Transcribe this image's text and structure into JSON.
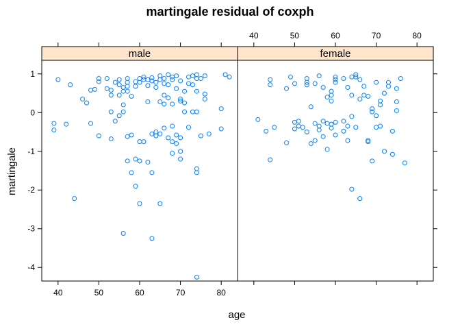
{
  "chart_data": {
    "type": "scatter",
    "title": "martingale residual of coxph",
    "xlabel": "age",
    "ylabel": "martingale",
    "xlim": [
      36,
      84
    ],
    "ylim": [
      -4.35,
      1.35
    ],
    "x_ticks": [
      40,
      50,
      60,
      70,
      80
    ],
    "y_ticks": [
      -4,
      -3,
      -2,
      -1,
      0,
      1
    ],
    "point_color": "#0080ff",
    "strip_color": "#ffe5cc",
    "panels": [
      {
        "name": "male",
        "points": [
          [
            39,
            -0.28
          ],
          [
            39,
            -0.45
          ],
          [
            40,
            0.85
          ],
          [
            42,
            -0.3
          ],
          [
            43,
            0.72
          ],
          [
            44,
            -2.22
          ],
          [
            46,
            0.35
          ],
          [
            47,
            0.25
          ],
          [
            48,
            0.58
          ],
          [
            48,
            -0.28
          ],
          [
            49,
            0.6
          ],
          [
            50,
            0.88
          ],
          [
            50,
            0.8
          ],
          [
            50,
            -0.6
          ],
          [
            52,
            0.88
          ],
          [
            52,
            0.62
          ],
          [
            53,
            0.58
          ],
          [
            53,
            0.45
          ],
          [
            53,
            0.02
          ],
          [
            53,
            -0.68
          ],
          [
            54,
            0.78
          ],
          [
            54,
            -0.22
          ],
          [
            55,
            0.85
          ],
          [
            55,
            0.72
          ],
          [
            55,
            0.45
          ],
          [
            55,
            -0.08
          ],
          [
            56,
            0.65
          ],
          [
            56,
            0.55
          ],
          [
            56,
            0.2
          ],
          [
            56,
            0.02
          ],
          [
            56,
            -3.12
          ],
          [
            57,
            0.88
          ],
          [
            57,
            0.78
          ],
          [
            57,
            0.68
          ],
          [
            57,
            0.55
          ],
          [
            57,
            -0.62
          ],
          [
            57,
            -1.25
          ],
          [
            58,
            0.42
          ],
          [
            58,
            -0.58
          ],
          [
            58,
            -1.55
          ],
          [
            59,
            0.8
          ],
          [
            59,
            0.68
          ],
          [
            59,
            -1.9
          ],
          [
            59,
            -1.2
          ],
          [
            60,
            0.88
          ],
          [
            60,
            0.78
          ],
          [
            60,
            -0.75
          ],
          [
            60,
            -1.25
          ],
          [
            60,
            -2.35
          ],
          [
            61,
            0.92
          ],
          [
            61,
            0.85
          ],
          [
            61,
            -0.75
          ],
          [
            62,
            0.85
          ],
          [
            62,
            0.7
          ],
          [
            62,
            0.28
          ],
          [
            62,
            -1.28
          ],
          [
            63,
            0.9
          ],
          [
            63,
            0.82
          ],
          [
            63,
            -0.55
          ],
          [
            63,
            -1.55
          ],
          [
            63,
            -3.25
          ],
          [
            64,
            0.78
          ],
          [
            64,
            0.65
          ],
          [
            64,
            -0.5
          ],
          [
            64,
            -0.6
          ],
          [
            65,
            0.95
          ],
          [
            65,
            0.85
          ],
          [
            65,
            0.28
          ],
          [
            65,
            -0.55
          ],
          [
            65,
            -2.35
          ],
          [
            66,
            0.88
          ],
          [
            66,
            0.75
          ],
          [
            66,
            0.45
          ],
          [
            66,
            0.22
          ],
          [
            66,
            -0.4
          ],
          [
            67,
            0.98
          ],
          [
            67,
            0.72
          ],
          [
            67,
            0.38
          ],
          [
            67,
            -0.65
          ],
          [
            68,
            0.92
          ],
          [
            68,
            0.85
          ],
          [
            68,
            0.22
          ],
          [
            68,
            -0.35
          ],
          [
            68,
            -0.75
          ],
          [
            68,
            -1.05
          ],
          [
            69,
            0.95
          ],
          [
            69,
            0.62
          ],
          [
            69,
            -0.58
          ],
          [
            69,
            -0.8
          ],
          [
            70,
            0.82
          ],
          [
            70,
            0.35
          ],
          [
            70,
            0.3
          ],
          [
            70,
            -1.0
          ],
          [
            70,
            -1.2
          ],
          [
            70,
            -0.65
          ],
          [
            71,
            0.55
          ],
          [
            71,
            0.25
          ],
          [
            71,
            0.02
          ],
          [
            72,
            0.92
          ],
          [
            72,
            0.75
          ],
          [
            72,
            -0.38
          ],
          [
            73,
            0.95
          ],
          [
            73,
            0.72
          ],
          [
            73,
            0.02
          ],
          [
            74,
            0.98
          ],
          [
            74,
            0.88
          ],
          [
            74,
            0.55
          ],
          [
            74,
            0.02
          ],
          [
            74,
            -1.45
          ],
          [
            74,
            -1.55
          ],
          [
            74,
            -4.25
          ],
          [
            75,
            0.88
          ],
          [
            75,
            -0.6
          ],
          [
            76,
            0.95
          ],
          [
            76,
            0.48
          ],
          [
            76,
            0.35
          ],
          [
            77,
            -0.55
          ],
          [
            80,
            0.1
          ],
          [
            80,
            -0.42
          ],
          [
            81,
            0.98
          ],
          [
            82,
            0.92
          ]
        ]
      },
      {
        "name": "female",
        "points": [
          [
            41,
            -0.18
          ],
          [
            43,
            -0.48
          ],
          [
            44,
            0.85
          ],
          [
            44,
            0.72
          ],
          [
            44,
            -1.22
          ],
          [
            45,
            -0.38
          ],
          [
            48,
            0.62
          ],
          [
            48,
            -0.78
          ],
          [
            49,
            0.92
          ],
          [
            50,
            0.75
          ],
          [
            50,
            -0.25
          ],
          [
            50,
            -0.42
          ],
          [
            51,
            -0.22
          ],
          [
            51,
            -0.35
          ],
          [
            52,
            -0.38
          ],
          [
            53,
            0.88
          ],
          [
            53,
            0.78
          ],
          [
            53,
            0.72
          ],
          [
            53,
            -0.5
          ],
          [
            54,
            0.15
          ],
          [
            54,
            -0.8
          ],
          [
            55,
            0.75
          ],
          [
            55,
            -0.28
          ],
          [
            55,
            -0.72
          ],
          [
            56,
            0.95
          ],
          [
            56,
            -0.35
          ],
          [
            56,
            -0.45
          ],
          [
            57,
            0.65
          ],
          [
            57,
            -0.22
          ],
          [
            57,
            -0.62
          ],
          [
            58,
            0.4
          ],
          [
            58,
            -0.28
          ],
          [
            58,
            -0.95
          ],
          [
            59,
            0.55
          ],
          [
            59,
            0.45
          ],
          [
            59,
            0.3
          ],
          [
            59,
            -0.3
          ],
          [
            59,
            -0.4
          ],
          [
            60,
            0.92
          ],
          [
            60,
            0.85
          ],
          [
            60,
            0.78
          ],
          [
            60,
            -0.25
          ],
          [
            60,
            -0.58
          ],
          [
            62,
            0.88
          ],
          [
            62,
            -0.22
          ],
          [
            62,
            -0.48
          ],
          [
            63,
            0.65
          ],
          [
            63,
            -0.35
          ],
          [
            63,
            -0.72
          ],
          [
            64,
            0.92
          ],
          [
            64,
            0.45
          ],
          [
            64,
            -0.1
          ],
          [
            64,
            -1.98
          ],
          [
            65,
            0.98
          ],
          [
            65,
            0.92
          ],
          [
            65,
            -0.38
          ],
          [
            66,
            0.85
          ],
          [
            66,
            0.35
          ],
          [
            66,
            -2.22
          ],
          [
            67,
            0.68
          ],
          [
            67,
            0.45
          ],
          [
            68,
            0.42
          ],
          [
            68,
            -0.72
          ],
          [
            68,
            -0.75
          ],
          [
            69,
            0.1
          ],
          [
            69,
            0.02
          ],
          [
            69,
            -1.25
          ],
          [
            70,
            0.78
          ],
          [
            70,
            -0.08
          ],
          [
            70,
            -0.38
          ],
          [
            71,
            0.3
          ],
          [
            71,
            0.2
          ],
          [
            71,
            -0.35
          ],
          [
            72,
            0.5
          ],
          [
            72,
            -1.0
          ],
          [
            73,
            0.78
          ],
          [
            73,
            0.68
          ],
          [
            74,
            -0.48
          ],
          [
            74,
            -1.08
          ],
          [
            75,
            0.62
          ],
          [
            75,
            0.28
          ],
          [
            75,
            0.05
          ],
          [
            76,
            0.88
          ],
          [
            77,
            -1.3
          ]
        ]
      }
    ]
  }
}
